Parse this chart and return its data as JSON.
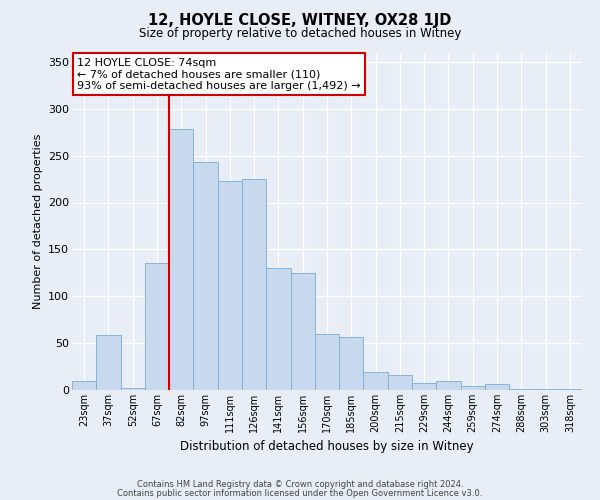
{
  "title": "12, HOYLE CLOSE, WITNEY, OX28 1JD",
  "subtitle": "Size of property relative to detached houses in Witney",
  "xlabel": "Distribution of detached houses by size in Witney",
  "ylabel": "Number of detached properties",
  "categories": [
    "23sqm",
    "37sqm",
    "52sqm",
    "67sqm",
    "82sqm",
    "97sqm",
    "111sqm",
    "126sqm",
    "141sqm",
    "156sqm",
    "170sqm",
    "185sqm",
    "200sqm",
    "215sqm",
    "229sqm",
    "244sqm",
    "259sqm",
    "274sqm",
    "288sqm",
    "303sqm",
    "318sqm"
  ],
  "values": [
    10,
    59,
    2,
    135,
    278,
    243,
    223,
    225,
    130,
    125,
    60,
    57,
    19,
    16,
    7,
    10,
    4,
    6,
    1,
    1,
    1
  ],
  "bar_color": "#c8d9ee",
  "bar_edge_color": "#7aadd4",
  "vline_x": 3.5,
  "vline_color": "#cc0000",
  "annotation_title": "12 HOYLE CLOSE: 74sqm",
  "annotation_line1": "← 7% of detached houses are smaller (110)",
  "annotation_line2": "93% of semi-detached houses are larger (1,492) →",
  "annotation_box_color": "#ffffff",
  "annotation_box_edge": "#cc0000",
  "bg_color": "#e8edf6",
  "plot_bg_color": "#e8edf6",
  "ylim": [
    0,
    360
  ],
  "yticks": [
    0,
    50,
    100,
    150,
    200,
    250,
    300,
    350
  ],
  "footer1": "Contains HM Land Registry data © Crown copyright and database right 2024.",
  "footer2": "Contains public sector information licensed under the Open Government Licence v3.0."
}
